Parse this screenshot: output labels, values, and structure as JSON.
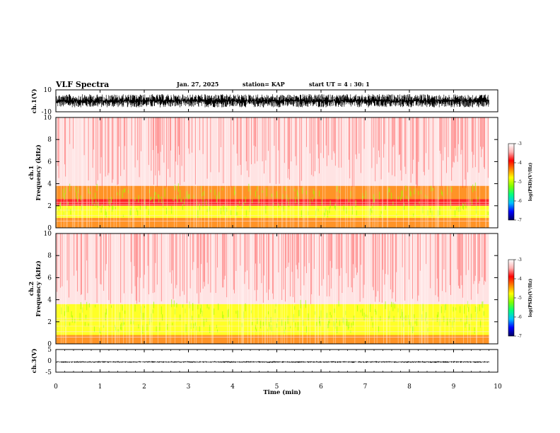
{
  "header": {
    "title": "VLF Spectra",
    "date": "Jan. 27, 2025",
    "station": "station= KAP",
    "start_time": "start UT = 4 : 30: 1"
  },
  "chart_data": {
    "type": "heatmap",
    "title": "VLF Spectra",
    "xlabel": "Time (min)",
    "xlim": [
      0,
      10
    ],
    "data_end_min": 9.8,
    "x_ticks": [
      "0",
      "1",
      "2",
      "3",
      "4",
      "5",
      "6",
      "7",
      "8",
      "9",
      "10"
    ],
    "panels": [
      {
        "id": "ch1-waveform",
        "type": "waveform",
        "ylabel": "ch.1(V)",
        "ylim": [
          -10,
          10
        ],
        "y_ticks": [
          "10",
          "-10"
        ],
        "signal_range_v": [
          -8.5,
          8.5
        ]
      },
      {
        "id": "ch1-spectrogram",
        "type": "heatmap",
        "ylabel_channel": "ch.1",
        "ylabel": "Frequency (kHz)",
        "ylim": [
          0,
          10
        ],
        "y_ticks": [
          "0",
          "2",
          "4",
          "6",
          "8",
          "10"
        ],
        "z_label": "log(PSD)(V²/Hz)",
        "z_range": [
          -7,
          -3
        ],
        "z_ticks": [
          "-3",
          "-4",
          "-5",
          "-6",
          "-7"
        ],
        "frequency_bands_khz": [
          {
            "range": [
              0.0,
              0.9
            ],
            "log_psd": -4.3
          },
          {
            "range": [
              0.9,
              2.0
            ],
            "log_psd": -4.9
          },
          {
            "range": [
              2.0,
              2.6
            ],
            "log_psd": -4.2
          },
          {
            "range": [
              2.6,
              3.8
            ],
            "log_psd": -4.6
          },
          {
            "range": [
              3.8,
              10.0
            ],
            "log_psd": -3.7
          }
        ]
      },
      {
        "id": "ch2-spectrogram",
        "type": "heatmap",
        "ylabel_channel": "ch.2",
        "ylabel": "Frequency (kHz)",
        "ylim": [
          0,
          10
        ],
        "y_ticks": [
          "0",
          "2",
          "4",
          "6",
          "8",
          "10"
        ],
        "z_label": "log(PSD)(V²/Hz)",
        "z_range": [
          -7,
          -3
        ],
        "z_ticks": [
          "-3",
          "-4",
          "-5",
          "-6",
          "-7"
        ],
        "frequency_bands_khz": [
          {
            "range": [
              0.0,
              0.8
            ],
            "log_psd": -4.4
          },
          {
            "range": [
              0.8,
              2.0
            ],
            "log_psd": -5.0
          },
          {
            "range": [
              2.0,
              3.6
            ],
            "log_psd": -4.8
          },
          {
            "range": [
              3.6,
              10.0
            ],
            "log_psd": -3.7
          }
        ]
      },
      {
        "id": "ch3-waveform",
        "type": "waveform",
        "ylabel": "ch.3(V)",
        "ylim": [
          -5,
          5
        ],
        "y_ticks": [
          "5",
          "0",
          "-5"
        ],
        "signal_range_v": [
          -1.0,
          0.0
        ]
      }
    ],
    "colorscale": [
      "#000060",
      "#0000ff",
      "#00c0ff",
      "#00ff80",
      "#80ff00",
      "#ffff00",
      "#ff8000",
      "#ff0000",
      "#ffb0b0",
      "#ffffff"
    ]
  }
}
